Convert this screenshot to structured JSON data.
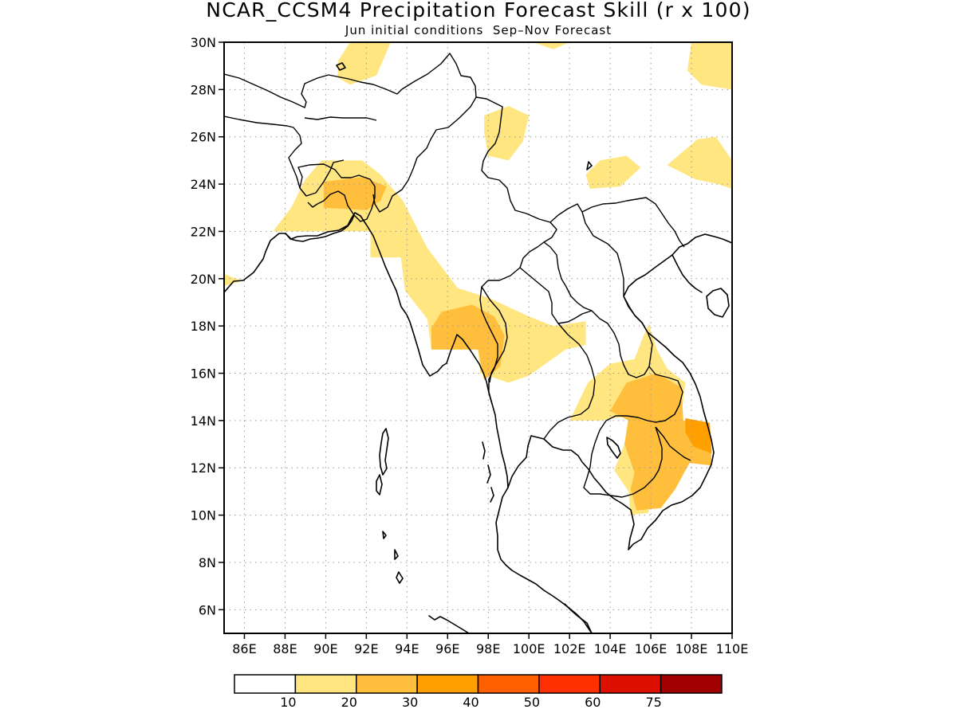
{
  "title": "NCAR_CCSM4 Precipitation Forecast Skill (r x 100)",
  "subtitle": "Jun initial conditions  Sep–Nov Forecast",
  "map": {
    "lon_range": [
      85,
      110
    ],
    "lat_range": [
      5,
      30
    ],
    "lat_ticks": [
      {
        "v": 30,
        "label": "30N"
      },
      {
        "v": 28,
        "label": "28N"
      },
      {
        "v": 26,
        "label": "26N"
      },
      {
        "v": 24,
        "label": "24N"
      },
      {
        "v": 22,
        "label": "22N"
      },
      {
        "v": 20,
        "label": "20N"
      },
      {
        "v": 18,
        "label": "18N"
      },
      {
        "v": 16,
        "label": "16N"
      },
      {
        "v": 14,
        "label": "14N"
      },
      {
        "v": 12,
        "label": "12N"
      },
      {
        "v": 10,
        "label": "10N"
      },
      {
        "v": 8,
        "label": "8N"
      },
      {
        "v": 6,
        "label": "6N"
      }
    ],
    "lon_ticks": [
      {
        "v": 86,
        "label": "86E"
      },
      {
        "v": 88,
        "label": "88E"
      },
      {
        "v": 90,
        "label": "90E"
      },
      {
        "v": 92,
        "label": "92E"
      },
      {
        "v": 94,
        "label": "94E"
      },
      {
        "v": 96,
        "label": "96E"
      },
      {
        "v": 98,
        "label": "98E"
      },
      {
        "v": 100,
        "label": "100E"
      },
      {
        "v": 102,
        "label": "102E"
      },
      {
        "v": 104,
        "label": "104E"
      },
      {
        "v": 106,
        "label": "106E"
      },
      {
        "v": 108,
        "label": "108E"
      },
      {
        "v": 110,
        "label": "110E"
      }
    ],
    "grid": true
  },
  "colorbar": {
    "colors": [
      "#ffffff",
      "#ffe680",
      "#ffbf3c",
      "#ff9f00",
      "#ff6000",
      "#ff3000",
      "#dd1000",
      "#a00000"
    ],
    "labels": [
      "10",
      "20",
      "30",
      "40",
      "50",
      "60",
      "75"
    ]
  },
  "skill_regions": [
    {
      "level": "10-20",
      "color": "#ffe680",
      "lonlat": [
        [
          91.2,
          30
        ],
        [
          93.2,
          30
        ],
        [
          92.5,
          28.6
        ],
        [
          91.2,
          28.2
        ],
        [
          90.6,
          28.5
        ],
        [
          90.6,
          29.2
        ]
      ]
    },
    {
      "level": "10-20",
      "color": "#ffe680",
      "lonlat": [
        [
          100.2,
          30
        ],
        [
          102.0,
          30
        ],
        [
          101.2,
          29.7
        ]
      ]
    },
    {
      "level": "10-20",
      "color": "#ffe680",
      "lonlat": [
        [
          108.0,
          30
        ],
        [
          110,
          30
        ],
        [
          110,
          28.0
        ],
        [
          108.5,
          28.2
        ],
        [
          107.8,
          28.8
        ]
      ]
    },
    {
      "level": "10-20",
      "color": "#ffe680",
      "lonlat": [
        [
          97.8,
          26.9
        ],
        [
          99.0,
          27.3
        ],
        [
          100.0,
          26.9
        ],
        [
          99.7,
          25.8
        ],
        [
          99.0,
          25.0
        ],
        [
          98.0,
          25.2
        ],
        [
          97.8,
          26.2
        ]
      ]
    },
    {
      "level": "10-20",
      "color": "#ffe680",
      "lonlat": [
        [
          102.8,
          24.4
        ],
        [
          103.5,
          25.0
        ],
        [
          104.8,
          25.2
        ],
        [
          105.5,
          24.7
        ],
        [
          104.5,
          23.9
        ],
        [
          103.0,
          23.8
        ]
      ]
    },
    {
      "level": "10-20",
      "color": "#ffe680",
      "lonlat": [
        [
          106.8,
          24.8
        ],
        [
          108.3,
          25.9
        ],
        [
          109.2,
          26.0
        ],
        [
          110,
          25.0
        ],
        [
          110,
          23.8
        ],
        [
          109.3,
          24.0
        ],
        [
          108.2,
          24.2
        ]
      ]
    },
    {
      "level": "10-20",
      "color": "#ffe680",
      "lonlat": [
        [
          85,
          20.2
        ],
        [
          85.9,
          19.9
        ],
        [
          85,
          19.7
        ]
      ]
    },
    {
      "level": "10-20",
      "color": "#ffe680",
      "lonlat": [
        [
          87.4,
          22.0
        ],
        [
          88.3,
          23.0
        ],
        [
          89.0,
          24.2
        ],
        [
          89.8,
          25.0
        ],
        [
          91.8,
          25.0
        ],
        [
          92.7,
          24.4
        ],
        [
          93.8,
          23.3
        ],
        [
          95.0,
          21.3
        ],
        [
          96.5,
          19.6
        ],
        [
          98.0,
          19.2
        ],
        [
          100.0,
          18.4
        ],
        [
          101.2,
          18.0
        ],
        [
          102.8,
          18.2
        ],
        [
          102.8,
          17.2
        ],
        [
          101.8,
          17.0
        ],
        [
          100.0,
          15.9
        ],
        [
          99.0,
          15.6
        ],
        [
          97.6,
          16.0
        ],
        [
          97.5,
          17.0
        ],
        [
          95.2,
          17.0
        ],
        [
          95.0,
          18.3
        ],
        [
          93.9,
          19.5
        ],
        [
          93.7,
          20.9
        ],
        [
          92.2,
          20.9
        ],
        [
          92.2,
          22.0
        ],
        [
          91.6,
          22.0
        ],
        [
          89.8,
          22.0
        ],
        [
          88.4,
          22.0
        ]
      ]
    },
    {
      "level": "10-20",
      "color": "#ffe680",
      "lonlat": [
        [
          102.0,
          14.0
        ],
        [
          102.9,
          15.6
        ],
        [
          104.0,
          16.4
        ],
        [
          105.2,
          16.6
        ],
        [
          105.6,
          17.5
        ],
        [
          105.9,
          18.1
        ],
        [
          106.3,
          17.0
        ],
        [
          106.8,
          16.2
        ],
        [
          107.7,
          15.6
        ],
        [
          107.5,
          14.2
        ],
        [
          106.8,
          12.1
        ],
        [
          106.6,
          11.0
        ],
        [
          105.8,
          10.9
        ],
        [
          105.9,
          10.1
        ],
        [
          105.0,
          10.0
        ],
        [
          104.9,
          11.0
        ],
        [
          104.2,
          11.9
        ],
        [
          104.7,
          13.0
        ],
        [
          104.9,
          14.2
        ],
        [
          103.5,
          14.0
        ]
      ]
    },
    {
      "level": "20-30",
      "color": "#ffbf3c",
      "lonlat": [
        [
          89.9,
          24.1
        ],
        [
          91.8,
          24.3
        ],
        [
          93.0,
          23.9
        ],
        [
          92.7,
          23.3
        ],
        [
          92.0,
          22.9
        ],
        [
          89.9,
          23.0
        ]
      ]
    },
    {
      "level": "20-30",
      "color": "#ffbf3c",
      "lonlat": [
        [
          95.2,
          17.0
        ],
        [
          95.2,
          17.9
        ],
        [
          95.7,
          18.6
        ],
        [
          97.2,
          18.9
        ],
        [
          98.3,
          18.4
        ],
        [
          98.8,
          17.6
        ],
        [
          98.6,
          16.3
        ],
        [
          97.8,
          15.7
        ],
        [
          97.5,
          17.0
        ],
        [
          96.8,
          17.0
        ],
        [
          96.2,
          17.0
        ],
        [
          96.1,
          17.0
        ]
      ]
    },
    {
      "level": "20-30",
      "color": "#ffbf3c",
      "lonlat": [
        [
          104.0,
          14.4
        ],
        [
          104.8,
          15.6
        ],
        [
          106.3,
          16.0
        ],
        [
          107.5,
          15.4
        ],
        [
          107.6,
          14.0
        ],
        [
          108.2,
          14.0
        ],
        [
          108.9,
          13.7
        ],
        [
          109.0,
          12.1
        ],
        [
          107.9,
          12.2
        ],
        [
          107.2,
          11.1
        ],
        [
          106.5,
          10.3
        ],
        [
          105.3,
          10.2
        ],
        [
          105.0,
          11.1
        ],
        [
          105.2,
          11.8
        ],
        [
          104.7,
          13.0
        ],
        [
          104.9,
          14.0
        ]
      ]
    },
    {
      "level": "30-40",
      "color": "#ff9f00",
      "lonlat": [
        [
          107.7,
          14.1
        ],
        [
          108.9,
          13.9
        ],
        [
          109.0,
          12.6
        ],
        [
          108.1,
          12.9
        ],
        [
          107.7,
          13.5
        ]
      ]
    }
  ]
}
